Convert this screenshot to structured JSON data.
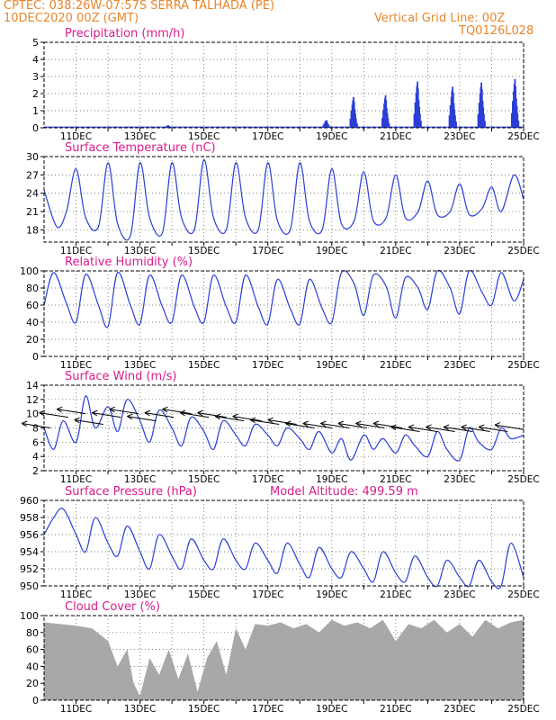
{
  "header": {
    "line1": "CPTEC:  038:26W-07:57S  SERRA TALHADA (PE)",
    "line2": "10DEC2020 00Z (GMT)",
    "grid_note": "Vertical Grid Line: 00Z",
    "code": "TQ0126L028"
  },
  "colors": {
    "header": "#e8862a",
    "title": "#d81b8c",
    "line": "#2a3fd6",
    "cloud": "#a8a8a8",
    "arrow": "#000000"
  },
  "x_axis": {
    "day_range": [
      10,
      25
    ],
    "ticks": [
      "11DEC",
      "13DEC",
      "15DEC",
      "17DEC",
      "19DEC",
      "21DEC",
      "23DEC",
      "25DEC"
    ],
    "tick_days": [
      11,
      13,
      15,
      17,
      19,
      21,
      23,
      25
    ]
  },
  "chart_data": [
    {
      "type": "bar",
      "title": "Precipitation (mm/h)",
      "ylim": [
        0,
        5
      ],
      "yticks": [
        "0",
        "1",
        "2",
        "3",
        "4",
        "5"
      ],
      "bursts": [
        {
          "day": 13.9,
          "peak": 0.15
        },
        {
          "day": 18.85,
          "peak": 0.45
        },
        {
          "day": 19.7,
          "peak": 1.8
        },
        {
          "day": 20.7,
          "peak": 1.9
        },
        {
          "day": 21.7,
          "peak": 2.7
        },
        {
          "day": 22.8,
          "peak": 2.4
        },
        {
          "day": 23.7,
          "peak": 2.65
        },
        {
          "day": 24.75,
          "peak": 2.85
        }
      ]
    },
    {
      "type": "line",
      "title": "Surface Temperature (nC)",
      "ylim": [
        16,
        30
      ],
      "yticks": [
        "18",
        "21",
        "24",
        "27",
        "30"
      ],
      "ytick_values": [
        18,
        21,
        24,
        27,
        30
      ],
      "days": [
        10.0,
        10.4,
        10.7,
        11.0,
        11.3,
        11.7,
        12.0,
        12.3,
        12.7,
        13.0,
        13.3,
        13.7,
        14.0,
        14.3,
        14.7,
        15.0,
        15.3,
        15.7,
        16.0,
        16.3,
        16.7,
        17.0,
        17.3,
        17.7,
        18.0,
        18.3,
        18.7,
        19.0,
        19.3,
        19.7,
        20.0,
        20.3,
        20.7,
        21.0,
        21.3,
        21.7,
        22.0,
        22.3,
        22.7,
        23.0,
        23.3,
        23.7,
        24.0,
        24.3,
        24.7,
        25.0
      ],
      "values": [
        24.5,
        18.5,
        21,
        28,
        20,
        18.5,
        29,
        19,
        17,
        29,
        20,
        17.5,
        29,
        20,
        18,
        29.5,
        20,
        18,
        29,
        20,
        18,
        29,
        19.5,
        18,
        29,
        19.5,
        18,
        28,
        19,
        19.5,
        27.5,
        19.5,
        20,
        27,
        20,
        21,
        26,
        20.5,
        21,
        25.5,
        20.5,
        21.5,
        25,
        21,
        27,
        23
      ]
    },
    {
      "type": "line",
      "title": "Relative Humidity (%)",
      "ylim": [
        0,
        100
      ],
      "yticks": [
        "0",
        "20",
        "40",
        "60",
        "80",
        "100"
      ],
      "ytick_values": [
        0,
        20,
        40,
        60,
        80,
        100
      ],
      "days": [
        10.0,
        10.3,
        10.7,
        11.0,
        11.3,
        11.7,
        12.0,
        12.3,
        12.7,
        13.0,
        13.3,
        13.7,
        14.0,
        14.3,
        14.7,
        15.0,
        15.3,
        15.7,
        16.0,
        16.3,
        16.7,
        17.0,
        17.3,
        17.7,
        18.0,
        18.3,
        18.7,
        19.0,
        19.3,
        19.7,
        20.0,
        20.3,
        20.7,
        21.0,
        21.3,
        21.7,
        22.0,
        22.3,
        22.7,
        23.0,
        23.3,
        23.7,
        24.0,
        24.3,
        24.7,
        25.0
      ],
      "values": [
        60,
        98,
        62,
        40,
        96,
        60,
        35,
        98,
        60,
        38,
        95,
        58,
        40,
        95,
        58,
        40,
        95,
        58,
        40,
        95,
        58,
        38,
        90,
        56,
        38,
        90,
        56,
        40,
        98,
        85,
        48,
        95,
        82,
        45,
        92,
        80,
        55,
        100,
        80,
        50,
        100,
        75,
        60,
        98,
        65,
        90
      ]
    },
    {
      "type": "line",
      "title": "Surface Wind (m/s)",
      "ylim": [
        2,
        14
      ],
      "yticks": [
        "2",
        "4",
        "6",
        "8",
        "10",
        "12",
        "14"
      ],
      "ytick_values": [
        2,
        4,
        6,
        8,
        10,
        12,
        14
      ],
      "days": [
        10.0,
        10.3,
        10.6,
        11.0,
        11.3,
        11.6,
        12.0,
        12.3,
        12.6,
        13.0,
        13.3,
        13.6,
        14.0,
        14.3,
        14.6,
        15.0,
        15.3,
        15.6,
        16.0,
        16.3,
        16.6,
        17.0,
        17.3,
        17.6,
        18.0,
        18.3,
        18.6,
        19.0,
        19.3,
        19.6,
        20.0,
        20.3,
        20.6,
        21.0,
        21.3,
        21.6,
        22.0,
        22.3,
        22.6,
        23.0,
        23.3,
        23.6,
        24.0,
        24.3,
        24.6,
        25.0
      ],
      "values": [
        8,
        5,
        9,
        6,
        12.5,
        8,
        11,
        7.5,
        12,
        9,
        6,
        10.5,
        8,
        5.5,
        9.5,
        7.5,
        5,
        9,
        7,
        5.5,
        8.5,
        7,
        5.5,
        8,
        6.5,
        5,
        7.5,
        4.5,
        6.5,
        3.5,
        7,
        5,
        6.5,
        4.5,
        7,
        5.5,
        4,
        7.5,
        5,
        3.5,
        8,
        6,
        5,
        8,
        6.5,
        7
      ],
      "arrows": {
        "days": [
          10.2,
          10.75,
          11.3,
          11.85,
          12.4,
          12.95,
          13.5,
          14.05,
          14.6,
          15.15,
          15.7,
          16.25,
          16.8,
          17.35,
          17.9,
          18.45,
          19.0,
          19.55,
          20.1,
          20.65,
          21.2,
          21.75,
          22.3,
          22.85,
          23.4,
          23.95,
          24.5,
          25.0
        ],
        "speeds": [
          8,
          9.5,
          10,
          8.5,
          9.5,
          10,
          9,
          9.5,
          10,
          9.5,
          9.5,
          9,
          9,
          8.5,
          8.5,
          8,
          8,
          8,
          8,
          8,
          8,
          7.5,
          7.5,
          7.5,
          7.5,
          7.5,
          7.5,
          7.8
        ]
      }
    },
    {
      "type": "line",
      "title": "Surface Pressure (hPa)",
      "annotation": "Model Altitude: 499.59 m",
      "ylim": [
        950,
        960
      ],
      "yticks": [
        "950",
        "952",
        "954",
        "956",
        "958",
        "960"
      ],
      "ytick_values": [
        950,
        952,
        954,
        956,
        958,
        960
      ],
      "days": [
        10.0,
        10.3,
        10.6,
        11.0,
        11.3,
        11.6,
        12.0,
        12.3,
        12.6,
        13.0,
        13.3,
        13.6,
        14.0,
        14.3,
        14.6,
        15.0,
        15.3,
        15.6,
        16.0,
        16.3,
        16.6,
        17.0,
        17.3,
        17.6,
        18.0,
        18.3,
        18.6,
        19.0,
        19.3,
        19.6,
        20.0,
        20.3,
        20.6,
        21.0,
        21.3,
        21.6,
        22.0,
        22.3,
        22.6,
        23.0,
        23.3,
        23.6,
        24.0,
        24.3,
        24.6,
        25.0
      ],
      "values": [
        956,
        958,
        959,
        956,
        954,
        958,
        955,
        953.5,
        957,
        954,
        952,
        956,
        953.5,
        952,
        955.5,
        953,
        952,
        955.5,
        953,
        952,
        955,
        953,
        951.5,
        955,
        952.5,
        951,
        954.5,
        952,
        951,
        954,
        952,
        950.5,
        954,
        951.5,
        950.5,
        953.5,
        951,
        950,
        953,
        951,
        950,
        953,
        950.5,
        950,
        955,
        951
      ]
    },
    {
      "type": "area",
      "title": "Cloud Cover (%)",
      "ylim": [
        0,
        100
      ],
      "yticks": [
        "0",
        "20",
        "40",
        "60",
        "80",
        "100"
      ],
      "ytick_values": [
        0,
        20,
        40,
        60,
        80,
        100
      ],
      "days": [
        10.0,
        10.5,
        11.0,
        11.5,
        12.0,
        12.3,
        12.6,
        12.8,
        13.0,
        13.3,
        13.6,
        13.9,
        14.2,
        14.5,
        14.8,
        15.1,
        15.4,
        15.7,
        16.0,
        16.3,
        16.6,
        17.0,
        17.4,
        17.8,
        18.2,
        18.6,
        19.0,
        19.4,
        19.8,
        20.2,
        20.6,
        21.0,
        21.4,
        21.8,
        22.2,
        22.6,
        23.0,
        23.4,
        23.8,
        24.2,
        24.6,
        25.0
      ],
      "values": [
        92,
        90,
        88,
        85,
        70,
        40,
        60,
        20,
        5,
        50,
        30,
        60,
        25,
        55,
        10,
        50,
        70,
        30,
        85,
        60,
        90,
        88,
        92,
        85,
        90,
        80,
        95,
        88,
        92,
        85,
        95,
        70,
        90,
        85,
        95,
        80,
        90,
        75,
        95,
        85,
        92,
        95
      ]
    }
  ]
}
